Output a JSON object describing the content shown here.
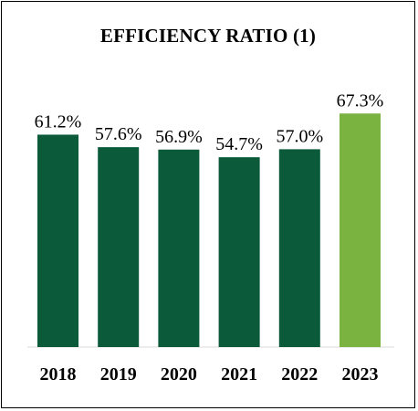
{
  "chart_data": {
    "type": "bar",
    "title": "EFFICIENCY RATIO (1)",
    "categories": [
      "2018",
      "2019",
      "2020",
      "2021",
      "2022",
      "2023"
    ],
    "values": [
      61.2,
      57.6,
      56.9,
      54.7,
      57.0,
      67.3
    ],
    "value_labels": [
      "61.2%",
      "57.6%",
      "56.9%",
      "54.7%",
      "57.0%",
      "67.3%"
    ],
    "xlabel": "",
    "ylabel": "",
    "grid": false,
    "legend": "none",
    "colors": [
      "#0b5b3b",
      "#0b5b3b",
      "#0b5b3b",
      "#0b5b3b",
      "#0b5b3b",
      "#7bb340"
    ]
  }
}
